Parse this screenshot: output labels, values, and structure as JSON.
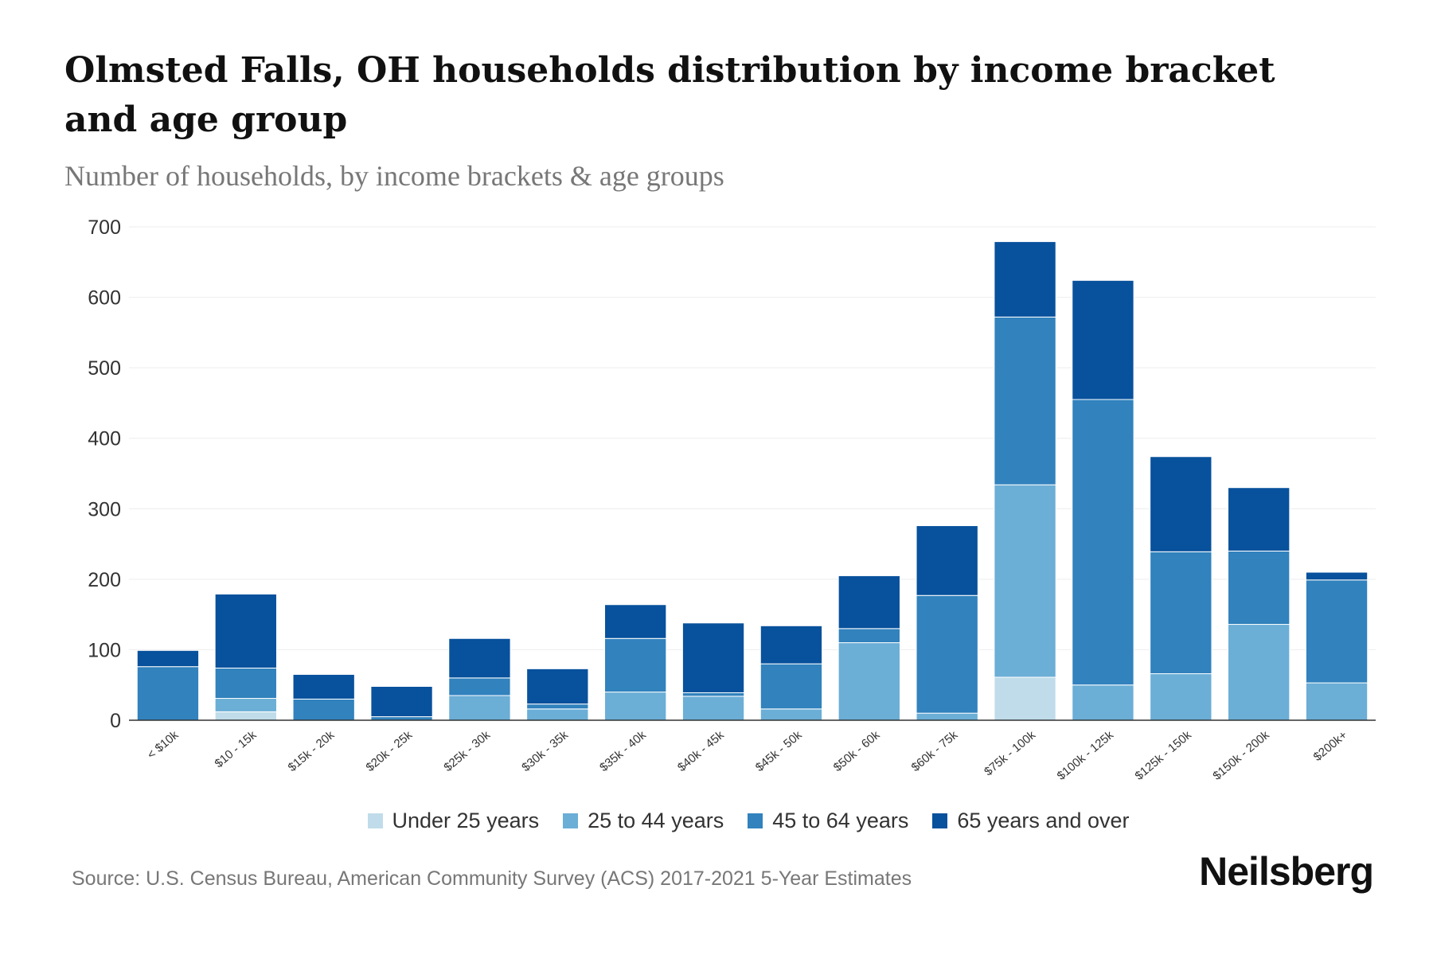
{
  "chart_data": {
    "type": "bar",
    "stacked": true,
    "title": "Olmsted Falls, OH households distribution by income bracket and age group",
    "subtitle": "Number of households, by income brackets & age groups",
    "xlabel": "",
    "ylabel": "",
    "ylim": [
      0,
      700
    ],
    "yticks": [
      0,
      100,
      200,
      300,
      400,
      500,
      600,
      700
    ],
    "categories": [
      "< $10k",
      "$10 - 15k",
      "$15k - 20k",
      "$20k - 25k",
      "$25k - 30k",
      "$30k - 35k",
      "$35k - 40k",
      "$40k - 45k",
      "$45k - 50k",
      "$50k - 60k",
      "$60k - 75k",
      "$75k - 100k",
      "$100k - 125k",
      "$125k - 150k",
      "$150k - 200k",
      "$200k+"
    ],
    "series": [
      {
        "name": "Under 25 years",
        "color": "#c0dcea",
        "values": [
          0,
          12,
          0,
          0,
          0,
          0,
          0,
          0,
          0,
          0,
          0,
          61,
          0,
          0,
          0,
          0
        ]
      },
      {
        "name": "25 to 44 years",
        "color": "#6baed6",
        "values": [
          0,
          19,
          0,
          0,
          35,
          16,
          40,
          34,
          16,
          110,
          10,
          273,
          50,
          66,
          136,
          53
        ]
      },
      {
        "name": "45 to 64 years",
        "color": "#3182bd",
        "values": [
          76,
          43,
          30,
          5,
          25,
          7,
          76,
          5,
          64,
          20,
          167,
          238,
          405,
          173,
          104,
          146
        ]
      },
      {
        "name": "65 years and over",
        "color": "#08519c",
        "values": [
          23,
          105,
          35,
          43,
          56,
          50,
          48,
          99,
          54,
          75,
          99,
          107,
          169,
          135,
          90,
          11
        ]
      }
    ],
    "legend_position": "bottom",
    "grid": true
  },
  "source": "Source: U.S. Census Bureau, American Community Survey (ACS) 2017-2021 5-Year Estimates",
  "logo": "Neilsberg"
}
